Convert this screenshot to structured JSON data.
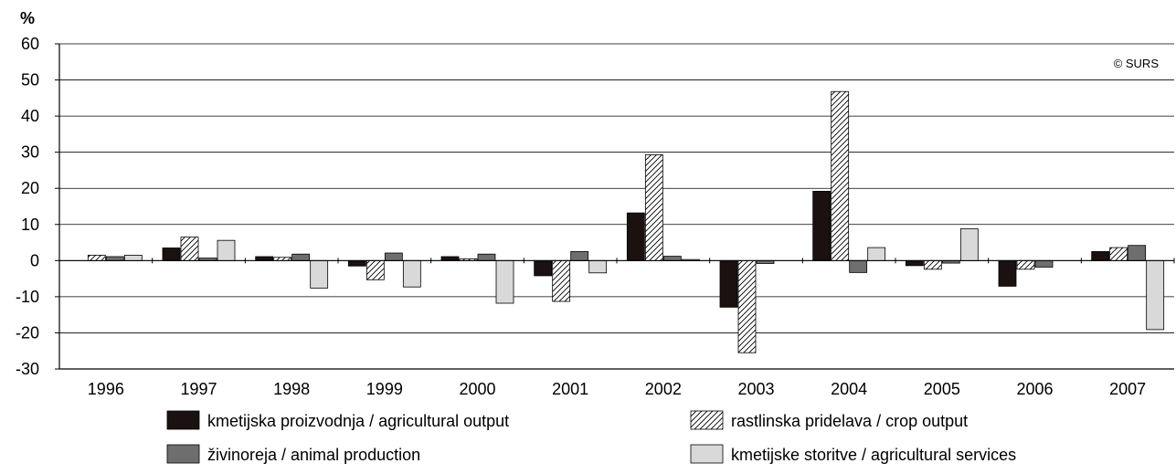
{
  "chart_data": {
    "type": "bar",
    "ylabel": "%",
    "watermark": "© SURS",
    "ylim": [
      -30,
      60
    ],
    "yticks": [
      60,
      50,
      40,
      30,
      20,
      10,
      0,
      -10,
      -20,
      -30
    ],
    "grid": true,
    "legend_position": "bottom",
    "categories": [
      "1996",
      "1997",
      "1998",
      "1999",
      "2000",
      "2001",
      "2002",
      "2003",
      "2004",
      "2005",
      "2006",
      "2007"
    ],
    "series": [
      {
        "name": "kmetijska proizvodnja  / agricultural output",
        "color": "#1a1110",
        "pattern": "solid",
        "values": [
          0,
          3.5,
          1.1,
          -1.5,
          1.1,
          -4.2,
          13.2,
          -12.9,
          19.2,
          -1.4,
          -7.1,
          2.5
        ]
      },
      {
        "name": "rastlinska pridelava / crop output",
        "color": "#ffffff",
        "pattern": "hatch",
        "values": [
          1.5,
          6.5,
          0.9,
          -5.3,
          0.5,
          -11.3,
          29.3,
          -25.5,
          46.8,
          -2.4,
          -2.4,
          3.6
        ]
      },
      {
        "name": "živinoreja / animal production",
        "color": "#6e6e6e",
        "pattern": "solid",
        "values": [
          1.1,
          0.7,
          1.8,
          2.1,
          1.8,
          2.5,
          1.2,
          -0.8,
          -3.3,
          -0.7,
          -1.8,
          4.2
        ]
      },
      {
        "name": "kmetijske storitve / agricultural services",
        "color": "#d9d9d9",
        "pattern": "solid",
        "values": [
          1.5,
          5.6,
          -7.6,
          -7.3,
          -11.8,
          -3.4,
          0.3,
          0,
          3.6,
          8.8,
          0,
          -19.1
        ]
      }
    ]
  }
}
